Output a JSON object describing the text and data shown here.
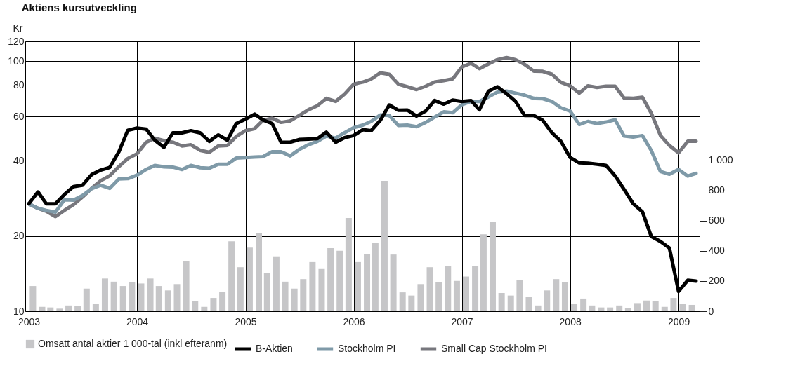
{
  "chart_data": {
    "type": "line",
    "title": "Aktiens kursutveckling",
    "ylabel": "Kr",
    "x": [
      "2003-01",
      "2003-02",
      "2003-03",
      "2003-04",
      "2003-05",
      "2003-06",
      "2003-07",
      "2003-08",
      "2003-09",
      "2003-10",
      "2003-11",
      "2003-12",
      "2004-01",
      "2004-02",
      "2004-03",
      "2004-04",
      "2004-05",
      "2004-06",
      "2004-07",
      "2004-08",
      "2004-09",
      "2004-10",
      "2004-11",
      "2004-12",
      "2005-01",
      "2005-02",
      "2005-03",
      "2005-04",
      "2005-05",
      "2005-06",
      "2005-07",
      "2005-08",
      "2005-09",
      "2005-10",
      "2005-11",
      "2005-12",
      "2006-01",
      "2006-02",
      "2006-03",
      "2006-04",
      "2006-05",
      "2006-06",
      "2006-07",
      "2006-08",
      "2006-09",
      "2006-10",
      "2006-11",
      "2006-12",
      "2007-01",
      "2007-02",
      "2007-03",
      "2007-04",
      "2007-05",
      "2007-06",
      "2007-07",
      "2007-08",
      "2007-09",
      "2007-10",
      "2007-11",
      "2007-12",
      "2008-01",
      "2008-02",
      "2008-03",
      "2008-04",
      "2008-05",
      "2008-06",
      "2008-07",
      "2008-08",
      "2008-09",
      "2008-10",
      "2008-11",
      "2008-12",
      "2009-01",
      "2009-02",
      "2009-03"
    ],
    "series": [
      {
        "name": "B-Aktien",
        "color": "#000000",
        "values": [
          26.9,
          30.0,
          26.9,
          26.9,
          29.3,
          31.5,
          31.9,
          35.2,
          36.7,
          37.6,
          43.4,
          52.9,
          54.0,
          53.5,
          48.3,
          45.2,
          51.7,
          51.7,
          52.7,
          51.7,
          47.8,
          50.7,
          48.3,
          56.3,
          58.6,
          61.4,
          58.2,
          56.3,
          47.4,
          47.4,
          48.6,
          48.8,
          49.0,
          52.0,
          47.4,
          49.4,
          50.4,
          53.2,
          52.7,
          58.0,
          66.8,
          63.6,
          63.8,
          60.3,
          63.2,
          69.6,
          67.3,
          69.9,
          69.0,
          69.6,
          63.9,
          75.9,
          79.0,
          74.1,
          69.0,
          60.6,
          60.6,
          58.0,
          51.7,
          47.8,
          41.2,
          39.2,
          39.1,
          38.7,
          38.3,
          34.8,
          30.7,
          26.9,
          25.0,
          19.9,
          19.0,
          17.9,
          12.0,
          13.3,
          13.2
        ]
      },
      {
        "name": "Stockholm PI",
        "color": "#7f9aa8",
        "values": [
          26.9,
          25.8,
          25.3,
          24.9,
          27.9,
          27.8,
          29.0,
          30.9,
          31.9,
          31.0,
          33.8,
          33.9,
          35.0,
          36.9,
          38.3,
          37.8,
          37.7,
          36.9,
          38.3,
          37.5,
          37.3,
          38.7,
          38.7,
          41.0,
          41.2,
          41.4,
          41.5,
          43.4,
          43.4,
          41.8,
          44.3,
          46.3,
          47.8,
          50.2,
          49.2,
          51.7,
          54.2,
          55.5,
          57.4,
          60.9,
          60.6,
          55.3,
          55.5,
          54.7,
          56.9,
          59.7,
          62.7,
          62.2,
          67.0,
          69.0,
          69.0,
          72.0,
          75.2,
          75.9,
          74.5,
          73.1,
          71.0,
          70.8,
          69.0,
          65.1,
          63.2,
          55.8,
          57.4,
          56.3,
          57.1,
          58.3,
          50.2,
          49.7,
          50.4,
          43.9,
          36.2,
          35.3,
          36.9,
          34.7,
          35.6
        ]
      },
      {
        "name": "Small Cap Stockholm PI",
        "color": "#77777d",
        "values": [
          26.9,
          25.8,
          25.1,
          23.9,
          25.3,
          26.7,
          28.6,
          31.0,
          33.3,
          34.8,
          37.9,
          40.8,
          42.6,
          47.4,
          49.2,
          48.1,
          47.4,
          45.8,
          46.3,
          44.0,
          43.2,
          45.8,
          46.0,
          50.0,
          52.7,
          53.7,
          58.0,
          59.1,
          56.9,
          57.7,
          60.6,
          63.9,
          66.4,
          71.0,
          69.0,
          73.8,
          80.9,
          82.5,
          84.8,
          89.8,
          88.6,
          80.9,
          79.0,
          77.0,
          79.4,
          82.5,
          83.6,
          85.0,
          94.8,
          98.1,
          93.3,
          97.5,
          101.4,
          103.3,
          101.4,
          97.0,
          91.2,
          91.0,
          88.6,
          82.3,
          79.7,
          74.5,
          79.7,
          78.5,
          79.4,
          79.4,
          71.3,
          71.0,
          71.7,
          61.9,
          50.4,
          46.0,
          43.0,
          47.8,
          47.8
        ]
      },
      {
        "name": "Omsatt antal aktier 1 000-tal (inkl efteranm)",
        "type": "bar",
        "axis": "y2",
        "color": "#c6c6c8",
        "x": [
          "2003-01-15",
          "2003-02-15",
          "2003-03-15",
          "2003-04-15",
          "2003-05-15",
          "2003-06-15",
          "2003-07-15",
          "2003-08-15",
          "2003-09-15",
          "2003-10-15",
          "2003-11-15",
          "2003-12-15",
          "2004-01-15",
          "2004-02-15",
          "2004-03-15",
          "2004-04-15",
          "2004-05-15",
          "2004-06-15",
          "2004-07-15",
          "2004-08-15",
          "2004-09-15",
          "2004-10-15",
          "2004-11-15",
          "2004-12-15",
          "2005-01-15",
          "2005-02-15",
          "2005-03-15",
          "2005-04-15",
          "2005-05-15",
          "2005-06-15",
          "2005-07-15",
          "2005-08-15",
          "2005-09-15",
          "2005-10-15",
          "2005-11-15",
          "2005-12-15",
          "2006-01-15",
          "2006-02-15",
          "2006-03-15",
          "2006-04-15",
          "2006-05-15",
          "2006-06-15",
          "2006-07-15",
          "2006-08-15",
          "2006-09-15",
          "2006-10-15",
          "2006-11-15",
          "2006-12-15",
          "2007-01-15",
          "2007-02-15",
          "2007-03-15",
          "2007-04-15",
          "2007-05-15",
          "2007-06-15",
          "2007-07-15",
          "2007-08-15",
          "2007-09-15",
          "2007-10-15",
          "2007-11-15",
          "2007-12-15",
          "2008-01-15",
          "2008-02-15",
          "2008-03-15",
          "2008-04-15",
          "2008-05-15",
          "2008-06-15",
          "2008-07-15",
          "2008-08-15",
          "2008-09-15",
          "2008-10-15",
          "2008-11-15",
          "2008-12-15",
          "2009-01-15",
          "2009-02-15"
        ],
        "values": [
          167,
          29,
          25,
          17,
          38,
          33,
          150,
          50,
          217,
          196,
          167,
          192,
          184,
          217,
          167,
          138,
          180,
          330,
          67,
          29,
          88,
          130,
          464,
          292,
          422,
          517,
          251,
          364,
          196,
          150,
          213,
          326,
          280,
          418,
          401,
          618,
          326,
          380,
          455,
          865,
          376,
          125,
          104,
          180,
          292,
          192,
          301,
          201,
          230,
          301,
          510,
          593,
          121,
          104,
          205,
          96,
          38,
          138,
          213,
          192,
          50,
          84,
          38,
          25,
          25,
          38,
          21,
          54,
          71,
          67,
          29,
          88,
          50,
          42
        ]
      }
    ],
    "xlim": [
      "2003-01",
      "2009-03"
    ],
    "xticks": [
      {
        "value": "2003-01",
        "label": "2003"
      },
      {
        "value": "2004-01",
        "label": "2004"
      },
      {
        "value": "2005-01",
        "label": "2005"
      },
      {
        "value": "2006-01",
        "label": "2006"
      },
      {
        "value": "2007-01",
        "label": "2007"
      },
      {
        "value": "2008-01",
        "label": "2008"
      },
      {
        "value": "2009-01",
        "label": "2009"
      }
    ],
    "ylim": [
      10,
      120
    ],
    "yticks": [
      10,
      20,
      40,
      60,
      80,
      100,
      120
    ],
    "log": "y",
    "y2lim": [
      0,
      1790
    ],
    "y2ticks": [
      0,
      200,
      400,
      600,
      800,
      {
        "value": 1000,
        "label": "1 000"
      }
    ],
    "grid": true,
    "legend": "bottom",
    "line_style": "solid",
    "marker": "none"
  }
}
